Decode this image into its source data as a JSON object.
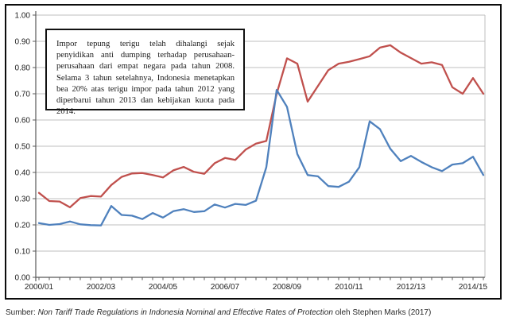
{
  "annotation": {
    "text": "Impor tepung terigu telah dihalangi sejak penyidikan anti dumping terhadap perusahaan-perusahaan dari empat negara pada tahun 2008. Selama 3 tahun setelahnya, Indonesia menetapkan bea 20% atas terigu impor pada tahun 2012 yang diperbarui tahun 2013 dan kebijakan kuota pada 2014."
  },
  "caption": {
    "prefix": "Sumber: ",
    "source_title": "Non Tariff Trade Regulations in Indonesia Nominal and Effective Rates of Protection",
    "suffix": " oleh Stephen Marks (2017)"
  },
  "chart_data": {
    "type": "line",
    "title": "",
    "xlabel": "",
    "ylabel": "",
    "ylim": [
      0.0,
      1.0
    ],
    "y_tick_step": 0.1,
    "y_tick_labels": [
      "0.00",
      "0.10",
      "0.20",
      "0.30",
      "0.40",
      "0.50",
      "0.60",
      "0.70",
      "0.80",
      "0.90",
      "1.00"
    ],
    "x_tick_labels": [
      "2000/01",
      "2002/03",
      "2004/05",
      "2006/07",
      "2008/09",
      "2010/11",
      "2012/13",
      "2014/15"
    ],
    "x_tick_indices": [
      0,
      6,
      12,
      18,
      24,
      30,
      36,
      42
    ],
    "x_start_year": 2000,
    "x_step_years": 0.3333,
    "points_per_series": 44,
    "grid": "horizontal",
    "legend_position": "none",
    "series": [
      {
        "name": "series_red",
        "color": "#C0504D",
        "values": [
          0.322,
          0.291,
          0.289,
          0.267,
          0.302,
          0.31,
          0.308,
          0.352,
          0.383,
          0.396,
          0.398,
          0.39,
          0.381,
          0.408,
          0.421,
          0.402,
          0.395,
          0.435,
          0.455,
          0.448,
          0.487,
          0.51,
          0.52,
          0.7,
          0.835,
          0.815,
          0.67,
          0.73,
          0.79,
          0.815,
          0.822,
          0.832,
          0.843,
          0.876,
          0.885,
          0.857,
          0.836,
          0.815,
          0.82,
          0.81,
          0.725,
          0.7,
          0.76,
          0.7
        ]
      },
      {
        "name": "series_blue",
        "color": "#4F81BD",
        "values": [
          0.207,
          0.2,
          0.203,
          0.213,
          0.202,
          0.199,
          0.198,
          0.272,
          0.238,
          0.235,
          0.222,
          0.245,
          0.228,
          0.252,
          0.26,
          0.249,
          0.252,
          0.278,
          0.266,
          0.28,
          0.276,
          0.292,
          0.42,
          0.715,
          0.65,
          0.47,
          0.39,
          0.385,
          0.348,
          0.345,
          0.365,
          0.42,
          0.595,
          0.565,
          0.49,
          0.443,
          0.463,
          0.44,
          0.42,
          0.405,
          0.43,
          0.435,
          0.46,
          0.39
        ]
      }
    ],
    "style_colors": {
      "gridline": "#BFBFBF",
      "axis": "#595959",
      "tick_text": "#1f1f1f",
      "plot_right_border": "#BFBFBF"
    }
  }
}
